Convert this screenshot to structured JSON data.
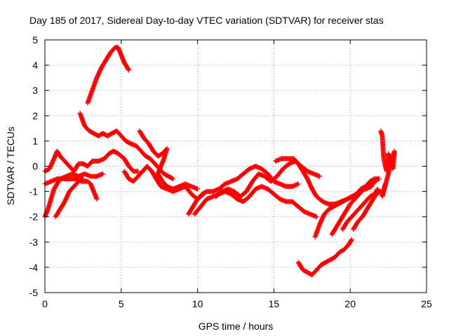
{
  "chart_data": {
    "type": "scatter",
    "title": "Day 185 of 2017, Sidereal Day-to-day VTEC variation (SDTVAR) for receiver stas",
    "xlabel": "GPS time / hours",
    "ylabel": "SDTVAR / TECUs",
    "xlim": [
      0,
      25
    ],
    "ylim": [
      -5,
      5
    ],
    "xticks": [
      "0",
      "5",
      "10",
      "15",
      "20",
      "25"
    ],
    "yticks": [
      "-5",
      "-4",
      "-3",
      "-2",
      "-1",
      "0",
      "1",
      "2",
      "3",
      "4",
      "5"
    ],
    "grid": true,
    "marker": "+",
    "color": "#ff0000",
    "series": [
      {
        "points": [
          [
            0,
            -0.2
          ],
          [
            0.3,
            -0.1
          ],
          [
            0.6,
            0.3
          ],
          [
            0.8,
            0.6
          ],
          [
            1.0,
            0.4
          ],
          [
            1.3,
            0.2
          ],
          [
            1.6,
            0.0
          ],
          [
            1.9,
            -0.2
          ],
          [
            2.2,
            0.1
          ],
          [
            2.5,
            0.1
          ],
          [
            2.8,
            0.0
          ],
          [
            3.1,
            0.2
          ],
          [
            3.5,
            0.2
          ],
          [
            3.9,
            0.3
          ],
          [
            4.2,
            0.5
          ],
          [
            4.5,
            0.6
          ],
          [
            4.8,
            0.5
          ],
          [
            5.2,
            0.3
          ],
          [
            5.5,
            0.0
          ],
          [
            5.8,
            -0.2
          ],
          [
            6.1,
            -0.2
          ]
        ]
      },
      {
        "points": [
          [
            0,
            -0.7
          ],
          [
            0.4,
            -0.6
          ],
          [
            0.8,
            -0.5
          ],
          [
            1.2,
            -0.5
          ],
          [
            1.6,
            -0.5
          ],
          [
            2.0,
            -0.5
          ],
          [
            2.4,
            -0.6
          ],
          [
            2.8,
            -0.6
          ],
          [
            3.0,
            -0.7
          ],
          [
            3.2,
            -1.0
          ],
          [
            3.4,
            -1.3
          ]
        ]
      },
      {
        "points": [
          [
            0,
            -2.0
          ],
          [
            0.2,
            -1.7
          ],
          [
            0.4,
            -1.3
          ],
          [
            0.6,
            -0.9
          ],
          [
            0.8,
            -0.7
          ],
          [
            1.0,
            -0.5
          ],
          [
            1.4,
            -0.4
          ],
          [
            1.8,
            -0.3
          ],
          [
            2.2,
            -0.4
          ],
          [
            2.6,
            -0.3
          ],
          [
            3.0,
            -0.4
          ],
          [
            3.4,
            -0.4
          ],
          [
            3.8,
            -0.3
          ]
        ]
      },
      {
        "points": [
          [
            0.7,
            -2.0
          ],
          [
            1.0,
            -1.7
          ],
          [
            1.3,
            -1.4
          ],
          [
            1.6,
            -1.0
          ],
          [
            1.9,
            -0.8
          ],
          [
            2.2,
            -0.6
          ],
          [
            2.5,
            -0.5
          ]
        ]
      },
      {
        "points": [
          [
            2.3,
            2.1
          ],
          [
            2.6,
            1.6
          ],
          [
            2.9,
            1.4
          ],
          [
            3.2,
            1.3
          ],
          [
            3.5,
            1.2
          ],
          [
            3.8,
            1.3
          ],
          [
            4.1,
            1.2
          ],
          [
            4.4,
            1.3
          ],
          [
            4.7,
            1.4
          ],
          [
            5.0,
            1.2
          ],
          [
            5.3,
            1.0
          ],
          [
            5.6,
            0.9
          ],
          [
            6.0,
            0.8
          ],
          [
            6.3,
            0.6
          ],
          [
            6.6,
            0.4
          ],
          [
            6.9,
            0.3
          ],
          [
            7.2,
            0.1
          ],
          [
            7.5,
            -0.1
          ],
          [
            7.8,
            -0.3
          ],
          [
            8.1,
            -0.4
          ],
          [
            8.4,
            -0.5
          ]
        ]
      },
      {
        "points": [
          [
            2.8,
            2.5
          ],
          [
            3.1,
            3.0
          ],
          [
            3.4,
            3.5
          ],
          [
            3.7,
            3.9
          ],
          [
            4.0,
            4.2
          ],
          [
            4.3,
            4.5
          ],
          [
            4.6,
            4.7
          ],
          [
            4.8,
            4.7
          ],
          [
            5.0,
            4.4
          ],
          [
            5.2,
            4.1
          ],
          [
            5.4,
            3.9
          ],
          [
            5.5,
            3.8
          ]
        ]
      },
      {
        "points": [
          [
            6.2,
            1.4
          ],
          [
            6.5,
            1.1
          ],
          [
            6.8,
            0.9
          ],
          [
            7.1,
            0.6
          ],
          [
            7.4,
            0.4
          ],
          [
            7.7,
            0.5
          ],
          [
            8.0,
            0.7
          ],
          [
            7.8,
            0.3
          ],
          [
            7.6,
            0.0
          ],
          [
            7.4,
            -0.3
          ],
          [
            7.7,
            -0.6
          ],
          [
            8.0,
            -0.8
          ],
          [
            8.4,
            -0.9
          ],
          [
            8.8,
            -0.8
          ],
          [
            9.2,
            -0.7
          ],
          [
            9.6,
            -0.8
          ],
          [
            10.0,
            -0.9
          ]
        ]
      },
      {
        "points": [
          [
            5.2,
            -0.2
          ],
          [
            5.5,
            -0.5
          ],
          [
            5.8,
            -0.6
          ],
          [
            6.1,
            -0.4
          ],
          [
            6.4,
            -0.2
          ],
          [
            6.7,
            0.0
          ],
          [
            7.0,
            -0.2
          ],
          [
            7.3,
            -0.5
          ],
          [
            7.6,
            -0.8
          ],
          [
            8.0,
            -0.9
          ],
          [
            8.4,
            -1.0
          ],
          [
            8.8,
            -0.9
          ],
          [
            9.2,
            -0.8
          ],
          [
            9.6,
            -1.1
          ],
          [
            10.0,
            -1.3
          ],
          [
            10.4,
            -1.1
          ]
        ]
      },
      {
        "points": [
          [
            9.4,
            -1.9
          ],
          [
            9.7,
            -1.6
          ],
          [
            10.0,
            -1.3
          ],
          [
            10.3,
            -1.1
          ],
          [
            10.6,
            -1.0
          ],
          [
            11.0,
            -1.0
          ],
          [
            11.4,
            -0.9
          ],
          [
            11.8,
            -0.7
          ],
          [
            12.2,
            -0.6
          ],
          [
            12.6,
            -0.5
          ],
          [
            13.0,
            -0.3
          ],
          [
            13.4,
            -0.1
          ],
          [
            13.8,
            0.0
          ],
          [
            14.2,
            -0.1
          ],
          [
            14.6,
            -0.3
          ],
          [
            15.0,
            -0.6
          ],
          [
            15.4,
            -0.7
          ],
          [
            15.8,
            -0.8
          ],
          [
            16.2,
            -0.8
          ],
          [
            16.6,
            -0.7
          ]
        ]
      },
      {
        "points": [
          [
            9.8,
            -1.9
          ],
          [
            10.2,
            -1.6
          ],
          [
            10.6,
            -1.3
          ],
          [
            11.0,
            -1.2
          ],
          [
            11.4,
            -1.1
          ],
          [
            11.8,
            -1.0
          ],
          [
            12.2,
            -1.1
          ],
          [
            12.6,
            -1.3
          ],
          [
            13.0,
            -1.4
          ],
          [
            13.4,
            -1.2
          ],
          [
            13.8,
            -0.9
          ],
          [
            14.2,
            -0.8
          ],
          [
            14.6,
            -0.9
          ],
          [
            15.0,
            -1.1
          ],
          [
            15.4,
            -1.3
          ],
          [
            15.8,
            -1.4
          ],
          [
            16.2,
            -1.4
          ],
          [
            16.6,
            -1.6
          ],
          [
            17.0,
            -1.8
          ],
          [
            17.4,
            -1.9
          ],
          [
            17.8,
            -2.0
          ]
        ]
      },
      {
        "points": [
          [
            11.2,
            -1.2
          ],
          [
            11.6,
            -1.0
          ],
          [
            12.0,
            -0.9
          ],
          [
            12.4,
            -1.0
          ],
          [
            12.8,
            -1.2
          ],
          [
            13.2,
            -1.0
          ],
          [
            13.6,
            -0.6
          ],
          [
            14.0,
            -0.3
          ],
          [
            14.4,
            -0.4
          ],
          [
            14.8,
            -0.6
          ],
          [
            15.2,
            -0.4
          ],
          [
            15.6,
            -0.1
          ],
          [
            16.0,
            0.1
          ],
          [
            16.4,
            0.2
          ],
          [
            16.8,
            0.0
          ],
          [
            17.2,
            -0.2
          ],
          [
            17.6,
            -0.3
          ],
          [
            18.0,
            -0.4
          ]
        ]
      },
      {
        "points": [
          [
            15.1,
            0.2
          ],
          [
            15.5,
            0.3
          ],
          [
            15.9,
            0.3
          ],
          [
            16.3,
            0.3
          ],
          [
            16.6,
            0.1
          ],
          [
            16.9,
            -0.2
          ],
          [
            17.2,
            -0.5
          ],
          [
            17.5,
            -0.9
          ],
          [
            17.8,
            -1.2
          ],
          [
            18.2,
            -1.4
          ],
          [
            18.6,
            -1.5
          ],
          [
            19.0,
            -1.5
          ],
          [
            19.4,
            -1.4
          ],
          [
            19.8,
            -1.3
          ],
          [
            20.2,
            -1.2
          ],
          [
            20.6,
            -1.0
          ],
          [
            21.0,
            -0.9
          ],
          [
            21.4,
            -0.8
          ]
        ]
      },
      {
        "points": [
          [
            17.7,
            -2.8
          ],
          [
            18.0,
            -2.3
          ],
          [
            18.3,
            -1.9
          ],
          [
            18.6,
            -1.7
          ],
          [
            18.9,
            -1.6
          ],
          [
            19.2,
            -1.5
          ],
          [
            19.5,
            -1.4
          ],
          [
            19.8,
            -1.3
          ],
          [
            20.1,
            -1.2
          ],
          [
            20.4,
            -1.1
          ],
          [
            20.7,
            -0.9
          ],
          [
            21.0,
            -0.8
          ],
          [
            21.3,
            -0.6
          ],
          [
            21.6,
            -0.5
          ],
          [
            21.9,
            -0.5
          ]
        ]
      },
      {
        "points": [
          [
            18.8,
            -2.7
          ],
          [
            19.1,
            -2.4
          ],
          [
            19.4,
            -2.1
          ],
          [
            19.7,
            -1.8
          ],
          [
            20.0,
            -1.5
          ],
          [
            20.3,
            -1.3
          ],
          [
            20.6,
            -1.1
          ],
          [
            20.9,
            -0.9
          ],
          [
            21.2,
            -0.8
          ],
          [
            21.5,
            -0.7
          ],
          [
            21.8,
            -0.5
          ]
        ]
      },
      {
        "points": [
          [
            19.5,
            -2.5
          ],
          [
            19.8,
            -2.2
          ],
          [
            20.1,
            -2.0
          ],
          [
            20.4,
            -1.8
          ],
          [
            20.7,
            -1.6
          ],
          [
            21.0,
            -1.4
          ],
          [
            21.3,
            -1.2
          ],
          [
            21.6,
            -1.1
          ],
          [
            21.8,
            -0.9
          ]
        ]
      },
      {
        "points": [
          [
            20.2,
            -2.5
          ],
          [
            20.5,
            -2.2
          ],
          [
            20.8,
            -2.0
          ],
          [
            21.1,
            -1.7
          ],
          [
            21.4,
            -1.4
          ],
          [
            21.7,
            -1.1
          ],
          [
            22.0,
            -1.0
          ]
        ]
      },
      {
        "points": [
          [
            16.6,
            -3.8
          ],
          [
            16.9,
            -4.1
          ],
          [
            17.2,
            -4.2
          ],
          [
            17.5,
            -4.3
          ],
          [
            17.8,
            -4.1
          ],
          [
            18.1,
            -3.9
          ],
          [
            18.4,
            -3.8
          ],
          [
            18.7,
            -3.7
          ],
          [
            19.0,
            -3.6
          ],
          [
            19.3,
            -3.4
          ],
          [
            19.6,
            -3.3
          ],
          [
            19.9,
            -3.1
          ],
          [
            20.1,
            -2.9
          ]
        ]
      },
      {
        "points": [
          [
            22.0,
            1.4
          ],
          [
            22.1,
            1.2
          ],
          [
            22.2,
            0.3
          ],
          [
            22.3,
            0.0
          ],
          [
            22.4,
            -0.2
          ],
          [
            22.5,
            0.5
          ],
          [
            22.6,
            0.3
          ],
          [
            22.7,
            0.1
          ],
          [
            22.8,
            -0.1
          ],
          [
            22.9,
            0.6
          ],
          [
            22.1,
            -1.2
          ],
          [
            22.3,
            -0.7
          ]
        ]
      }
    ]
  }
}
